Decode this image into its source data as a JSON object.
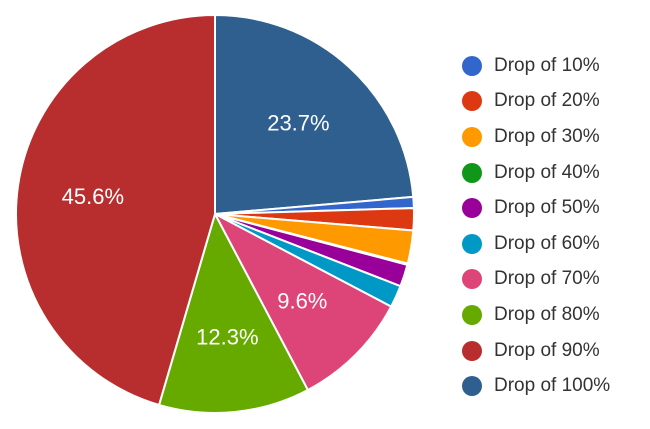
{
  "chart_data": {
    "type": "pie",
    "title": "",
    "legend_position": "right",
    "start_angle_deg": 0,
    "direction": "clockwise",
    "slices": [
      {
        "label": "Drop of 100%",
        "value": 23.7,
        "color": "#2f5f8f",
        "display": "23.7%"
      },
      {
        "label": "Drop of 10%",
        "value": 0.9,
        "color": "#3366cc",
        "display": ""
      },
      {
        "label": "Drop of 20%",
        "value": 1.8,
        "color": "#dc3912",
        "display": ""
      },
      {
        "label": "Drop of 30%",
        "value": 2.7,
        "color": "#ff9900",
        "display": ""
      },
      {
        "label": "Drop of 40%",
        "value": 0.1,
        "color": "#109618",
        "display": ""
      },
      {
        "label": "Drop of 50%",
        "value": 1.8,
        "color": "#990099",
        "display": ""
      },
      {
        "label": "Drop of 60%",
        "value": 1.8,
        "color": "#0099c6",
        "display": ""
      },
      {
        "label": "Drop of 70%",
        "value": 9.6,
        "color": "#dd4477",
        "display": "9.6%"
      },
      {
        "label": "Drop of 80%",
        "value": 12.3,
        "color": "#66aa00",
        "display": "12.3%"
      },
      {
        "label": "Drop of 90%",
        "value": 45.6,
        "color": "#b82e2e",
        "display": "45.6%"
      }
    ],
    "legend": [
      {
        "label": "Drop of 10%",
        "color": "#3366cc"
      },
      {
        "label": "Drop of 20%",
        "color": "#dc3912"
      },
      {
        "label": "Drop of 30%",
        "color": "#ff9900"
      },
      {
        "label": "Drop of 40%",
        "color": "#109618"
      },
      {
        "label": "Drop of 50%",
        "color": "#990099"
      },
      {
        "label": "Drop of 60%",
        "color": "#0099c6"
      },
      {
        "label": "Drop of 70%",
        "color": "#dd4477"
      },
      {
        "label": "Drop of 80%",
        "color": "#66aa00"
      },
      {
        "label": "Drop of 90%",
        "color": "#b82e2e"
      },
      {
        "label": "Drop of 100%",
        "color": "#2f5f8f"
      }
    ]
  }
}
